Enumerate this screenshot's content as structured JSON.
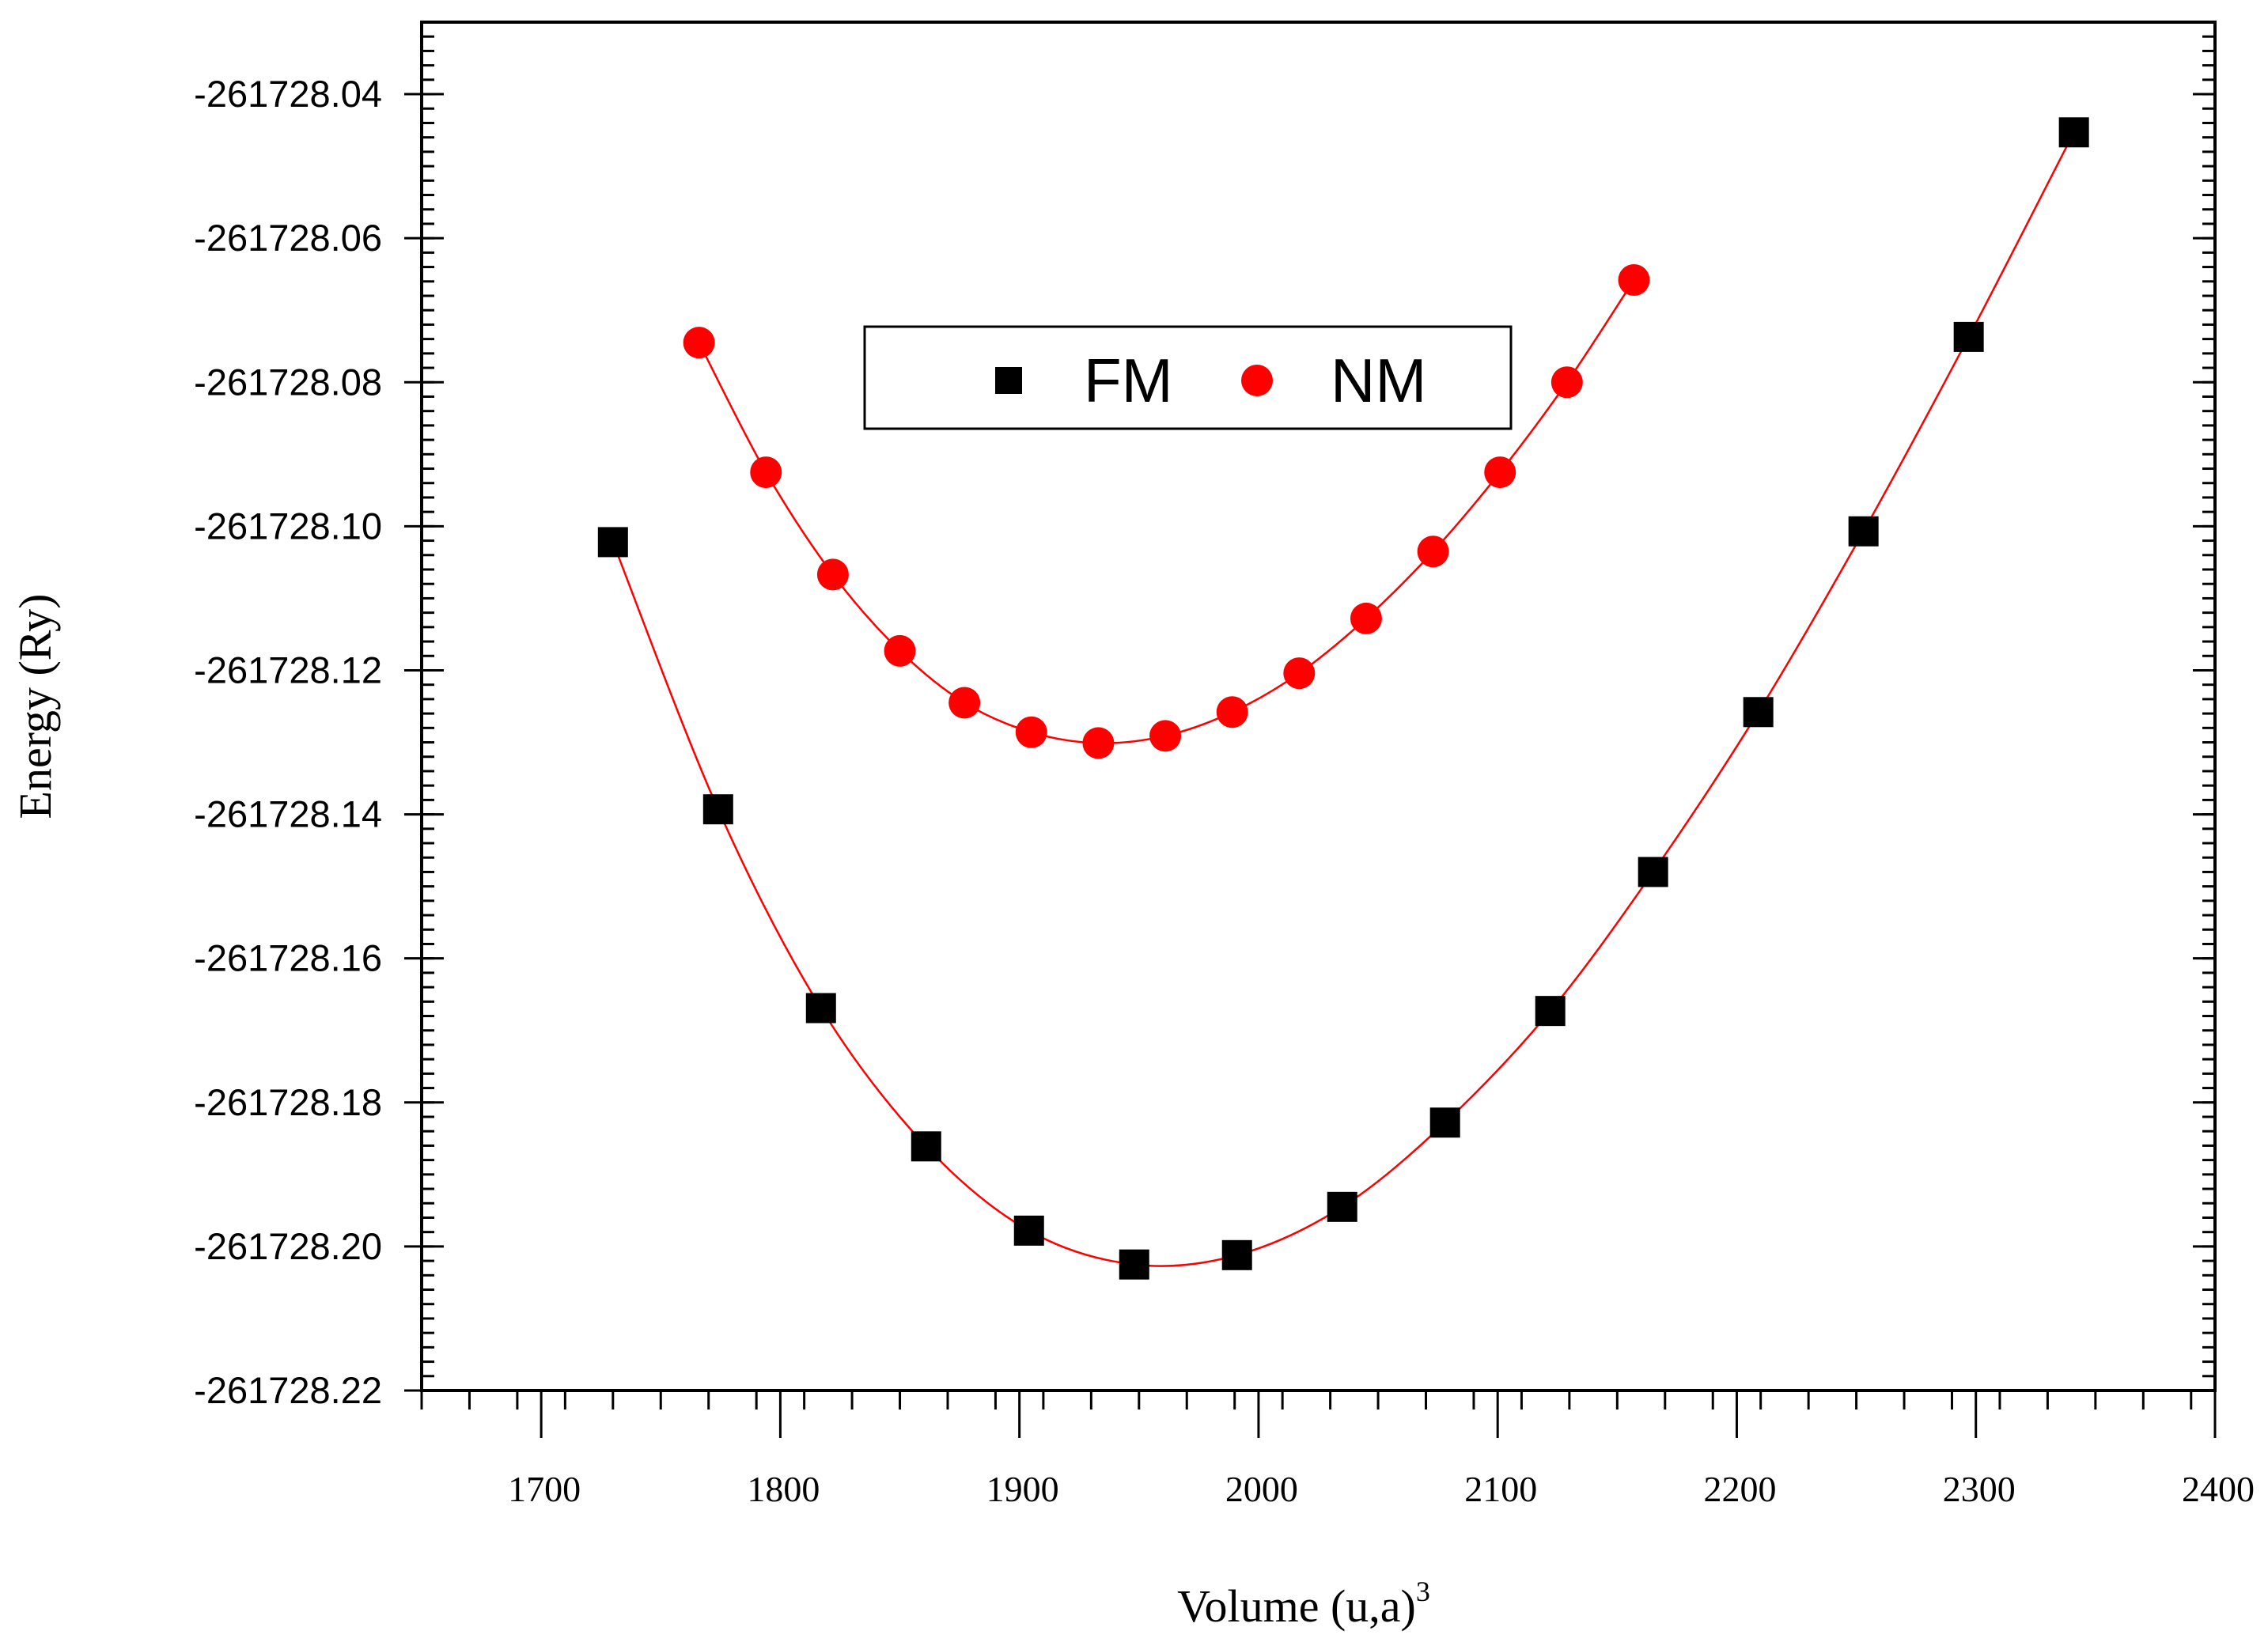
{
  "chart_data": {
    "type": "scatter",
    "title": "",
    "xlabel": "Volume (u,a)",
    "xlabel_superscript": "3",
    "ylabel": "Energy (Ry)",
    "xlim": [
      1650,
      2400
    ],
    "ylim": [
      -261728.22,
      -261728.03
    ],
    "x_ticks": [
      1700,
      1800,
      1900,
      2000,
      2100,
      2200,
      2300,
      2400
    ],
    "y_ticks": [
      -261728.04,
      -261728.06,
      -261728.08,
      -261728.1,
      -261728.12,
      -261728.14,
      -261728.16,
      -261728.18,
      -261728.2,
      -261728.22
    ],
    "x_tick_labels": [
      "1700",
      "1800",
      "1900",
      "2000",
      "2100",
      "2200",
      "2300",
      "2400"
    ],
    "y_tick_labels": [
      "-261728.04",
      "-261728.06",
      "-261728.08",
      "-261728.10",
      "-261728.12",
      "-261728.14",
      "-261728.16",
      "-261728.18",
      "-261728.20",
      "-261728.22"
    ],
    "fit_line_color": "#ff0000",
    "legend": {
      "position": "top-center",
      "entries": [
        "FM",
        "NM"
      ]
    },
    "series": [
      {
        "name": "FM",
        "marker": "square",
        "color": "#000000",
        "x": [
          1730,
          1774,
          1817,
          1861,
          1904,
          1948,
          1991,
          2035,
          2078,
          2122,
          2165,
          2209,
          2253,
          2297,
          2341
        ],
        "y": [
          -261728.1022,
          -261728.1393,
          -261728.1669,
          -261728.1861,
          -261728.1978,
          -261728.2025,
          -261728.2012,
          -261728.1945,
          -261728.1828,
          -261728.1673,
          -261728.148,
          -261728.1258,
          -261728.1007,
          -261728.0737,
          -261728.0453
        ]
      },
      {
        "name": "NM",
        "marker": "circle",
        "color": "#ff0000",
        "x": [
          1766,
          1794,
          1822,
          1850,
          1877,
          1905,
          1933,
          1961,
          1989,
          2017,
          2045,
          2073,
          2101,
          2129,
          2157
        ],
        "y": [
          -261728.0745,
          -261728.0925,
          -261728.1067,
          -261728.1173,
          -261728.1245,
          -261728.1286,
          -261728.1301,
          -261728.1291,
          -261728.1258,
          -261728.1204,
          -261728.1128,
          -261728.1035,
          -261728.0925,
          -261728.08,
          -261728.0658
        ]
      }
    ]
  }
}
